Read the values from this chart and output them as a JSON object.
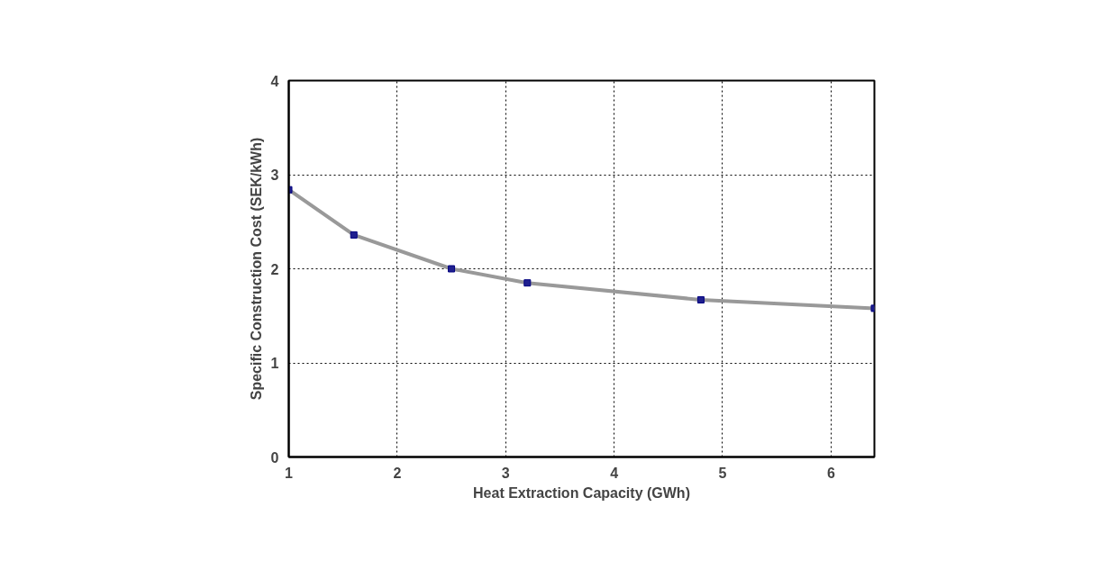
{
  "chart_data": {
    "type": "line",
    "xlabel": "Heat Extraction Capacity (GWh)",
    "ylabel": "Specific Construction Cost (SEK/kWh)",
    "x": [
      1,
      1.6,
      2.5,
      3.2,
      4.8,
      6.4
    ],
    "series": [
      {
        "color": "#999999",
        "values": [
          2.84,
          2.36,
          2.0,
          1.85,
          1.67,
          1.58
        ]
      }
    ],
    "marker": "square",
    "line_style": "solid",
    "xlim": [
      1,
      6.4
    ],
    "xticks": [
      1,
      2,
      3,
      4,
      5,
      6
    ],
    "ylim": [
      0,
      4
    ],
    "yticks": [
      0,
      1,
      2,
      3,
      4
    ],
    "grid": true
  }
}
